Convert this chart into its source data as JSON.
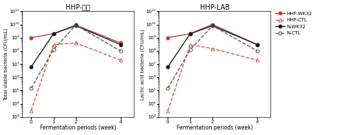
{
  "left_title": "HHP-총균",
  "right_title": "HHP-LAB",
  "xlabel": "Fermentation periods (week)",
  "left_ylabel": "Total viable bacteria (CFU/mL)",
  "right_ylabel": "Lactic acid bacteria (CFU/mL)",
  "x": [
    0,
    1,
    2,
    4
  ],
  "left": {
    "HHP-WK32": [
      1000000000.0,
      2000000000.0,
      9000000000.0,
      400000000.0
    ],
    "HHP-CTL": [
      3000.0,
      300000000.0,
      400000000.0,
      20000000.0
    ],
    "N-WK32": [
      6000000.0,
      2000000000.0,
      8000000000.0,
      300000000.0
    ],
    "N-CTL": [
      150000.0,
      120000000.0,
      9000000000.0,
      100000000.0
    ]
  },
  "right": {
    "HHP-WK32": [
      1000000000.0,
      2000000000.0,
      10000000000.0,
      300000000.0
    ],
    "HHP-CTL": [
      3000.0,
      300000000.0,
      150000000.0,
      20000000.0
    ],
    "N-WK32": [
      6000000.0,
      2000000000.0,
      8000000000.0,
      300000000.0
    ],
    "N-CTL": [
      150000.0,
      120000000.0,
      8000000000.0,
      100000000.0
    ]
  },
  "series_styles": {
    "HHP-WK32": {
      "color": "#c0392b",
      "linestyle": "-",
      "marker": "o",
      "markersize": 3.5,
      "linewidth": 1.0,
      "markerfacecolor": "#c0392b"
    },
    "HHP-CTL": {
      "color": "#e74c3c",
      "linestyle": "--",
      "marker": "^",
      "markersize": 3.5,
      "linewidth": 1.0,
      "markerfacecolor": "none"
    },
    "N-WK32": {
      "color": "#1a1a1a",
      "linestyle": "-",
      "marker": "o",
      "markersize": 3.5,
      "linewidth": 1.0,
      "markerfacecolor": "#1a1a1a"
    },
    "N-CTL": {
      "color": "#555555",
      "linestyle": "--",
      "marker": "o",
      "markersize": 3.5,
      "linewidth": 1.0,
      "markerfacecolor": "none"
    }
  },
  "ylim_log": [
    1000.0,
    100000000000.0
  ],
  "yticks": [
    1000.0,
    10000.0,
    100000.0,
    1000000.0,
    10000000.0,
    100000000.0,
    1000000000.0,
    10000000000.0,
    100000000000.0
  ],
  "ytick_labels": [
    "10³",
    "10⁴",
    "10⁵",
    "10⁶",
    "10⁷",
    "10⁸",
    "10⁹",
    "10¹⁰",
    "10¹¹"
  ],
  "legend_labels": [
    "HHP-WK32",
    "HHP-CTL",
    "N-WK32",
    "N-CTL"
  ],
  "background_color": "#ffffff"
}
